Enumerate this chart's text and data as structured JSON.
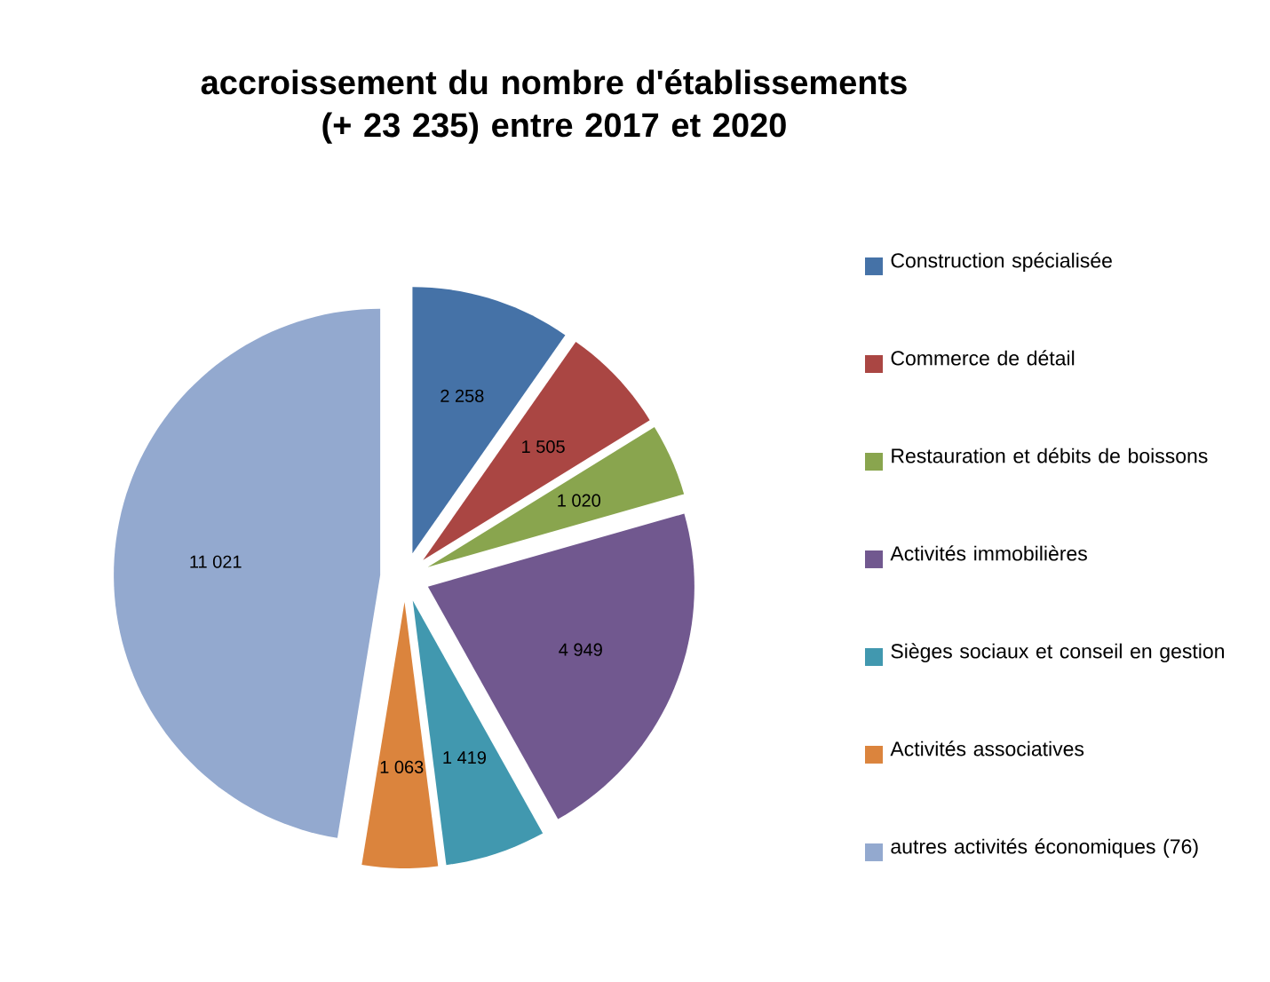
{
  "chart_data": {
    "type": "pie",
    "title": "accroissement du nombre d'établissements (+ 23 235) entre 2017 et 2020",
    "categories": [
      "Construction spécialisée",
      "Commerce de détail",
      "Restauration et débits de boissons",
      "Activités immobilières",
      "Sièges sociaux et conseil en gestion",
      "Activités associatives",
      "autres activités économiques (76)"
    ],
    "values": [
      2258,
      1505,
      1020,
      4949,
      1419,
      1063,
      11021
    ],
    "value_labels": [
      "2 258",
      "1 505",
      "1 020",
      "4 949",
      "1 419",
      "1 063",
      "11 021"
    ],
    "colors": [
      "#4572a7",
      "#aa4643",
      "#89a54e",
      "#71588f",
      "#4198af",
      "#db843d",
      "#93a9cf"
    ],
    "legend": "right"
  }
}
